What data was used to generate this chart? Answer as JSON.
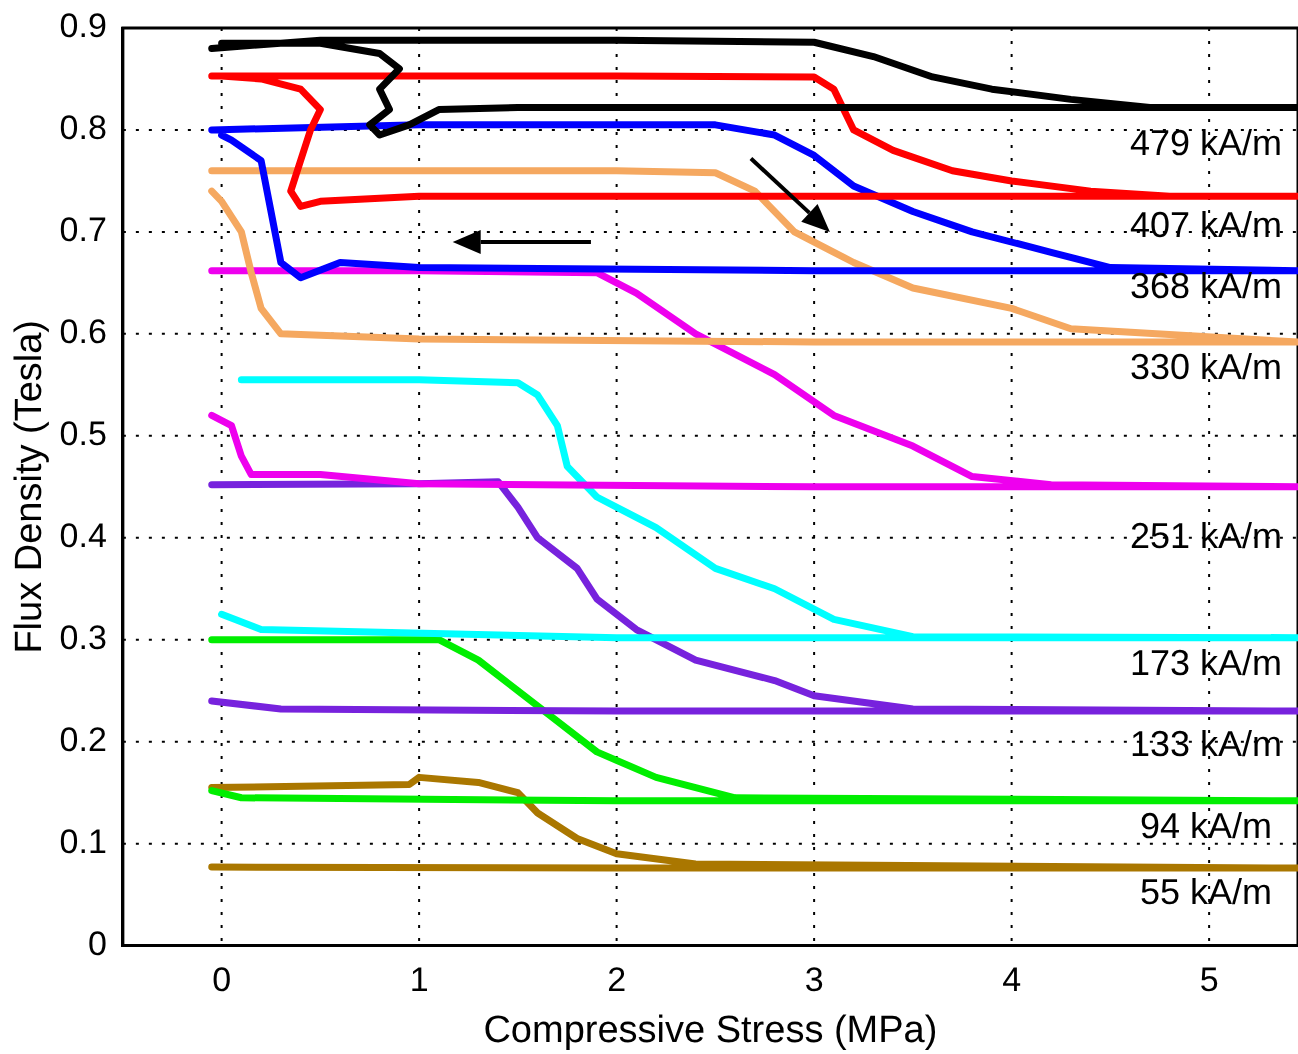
{
  "chart_data": {
    "type": "line",
    "xlabel": "Compressive Stress (MPa)",
    "ylabel": "Flux Density (Tesla)",
    "xlim": [
      -0.5,
      5.45
    ],
    "ylim": [
      0,
      0.9
    ],
    "xticks": [
      0,
      1,
      2,
      3,
      4,
      5
    ],
    "yticks": [
      0,
      0.1,
      0.2,
      0.3,
      0.4,
      0.5,
      0.6,
      0.7,
      0.8,
      0.9
    ],
    "grid": true,
    "legend": false,
    "marker": "none",
    "line_style": "solid",
    "series": [
      {
        "color": "#000000",
        "x": [
          -0.05,
          0.5,
          1,
          2,
          3,
          3.3,
          3.6,
          3.9,
          4.3,
          4.7,
          5.45,
          3,
          1.5,
          1.1,
          0.95,
          0.8,
          0.75,
          0.85,
          0.8,
          0.9,
          0.8,
          0.5,
          0
        ],
        "values": [
          0.88,
          0.888,
          0.888,
          0.888,
          0.886,
          0.872,
          0.852,
          0.84,
          0.83,
          0.822,
          0.822,
          0.822,
          0.822,
          0.82,
          0.805,
          0.795,
          0.805,
          0.82,
          0.84,
          0.86,
          0.875,
          0.885,
          0.885
        ]
      },
      {
        "color": "#ff0000",
        "x": [
          -0.05,
          1,
          2,
          3,
          3.1,
          3.2,
          3.4,
          3.7,
          4,
          4.4,
          4.8,
          5.45,
          3,
          1,
          0.5,
          0.4,
          0.35,
          0.4,
          0.45,
          0.5,
          0.4,
          0.2,
          0
        ],
        "values": [
          0.853,
          0.853,
          0.853,
          0.852,
          0.84,
          0.8,
          0.78,
          0.76,
          0.75,
          0.74,
          0.735,
          0.735,
          0.735,
          0.735,
          0.73,
          0.725,
          0.74,
          0.77,
          0.8,
          0.82,
          0.84,
          0.85,
          0.853
        ]
      },
      {
        "color": "#0000ff",
        "x": [
          -0.05,
          1,
          2,
          2.5,
          2.8,
          3,
          3.2,
          3.5,
          3.8,
          4.2,
          4.5,
          5.45,
          3,
          1,
          0.6,
          0.4,
          0.3,
          0.25,
          0.2,
          0.05,
          0
        ],
        "values": [
          0.8,
          0.805,
          0.805,
          0.805,
          0.795,
          0.775,
          0.745,
          0.72,
          0.7,
          0.68,
          0.665,
          0.662,
          0.662,
          0.665,
          0.67,
          0.655,
          0.67,
          0.72,
          0.77,
          0.79,
          0.795
        ]
      },
      {
        "color": "#f5a860",
        "x": [
          -0.05,
          1,
          2,
          2.5,
          2.7,
          2.9,
          3.2,
          3.5,
          4,
          4.3,
          5.45,
          3,
          1,
          0.3,
          0.2,
          0.15,
          0.1,
          0,
          -0.05
        ],
        "values": [
          0.76,
          0.76,
          0.76,
          0.758,
          0.74,
          0.7,
          0.67,
          0.645,
          0.625,
          0.605,
          0.592,
          0.592,
          0.595,
          0.6,
          0.625,
          0.66,
          0.7,
          0.73,
          0.74
        ]
      },
      {
        "color": "#ee00ee",
        "x": [
          -0.05,
          1,
          1.9,
          2.1,
          2.4,
          2.8,
          3.1,
          3.5,
          3.8,
          4.2,
          5.45,
          3,
          1,
          0.5,
          0.15,
          0.1,
          0.05,
          -0.05
        ],
        "values": [
          0.662,
          0.662,
          0.66,
          0.64,
          0.6,
          0.56,
          0.52,
          0.49,
          0.46,
          0.452,
          0.45,
          0.45,
          0.453,
          0.462,
          0.462,
          0.48,
          0.51,
          0.52
        ]
      },
      {
        "color": "#00ffff",
        "x": [
          0.1,
          1,
          1.5,
          1.6,
          1.7,
          1.75,
          1.9,
          2.2,
          2.5,
          2.8,
          3.1,
          3.5,
          5.45,
          2,
          0.2,
          0
        ],
        "values": [
          0.555,
          0.555,
          0.552,
          0.54,
          0.51,
          0.47,
          0.44,
          0.41,
          0.37,
          0.35,
          0.32,
          0.303,
          0.302,
          0.302,
          0.31,
          0.325
        ]
      },
      {
        "color": "#7722dd",
        "x": [
          -0.05,
          1,
          1.4,
          1.5,
          1.6,
          1.8,
          1.9,
          2.1,
          2.4,
          2.8,
          3,
          3.5,
          5.45,
          2,
          0.3,
          -0.05
        ],
        "values": [
          0.452,
          0.453,
          0.455,
          0.43,
          0.4,
          0.37,
          0.34,
          0.31,
          0.28,
          0.26,
          0.245,
          0.232,
          0.23,
          0.23,
          0.232,
          0.24
        ]
      },
      {
        "color": "#00ee00",
        "x": [
          -0.05,
          1.1,
          1.3,
          1.5,
          1.7,
          1.9,
          2.2,
          2.6,
          5.45,
          2,
          0.1,
          -0.05
        ],
        "values": [
          0.3,
          0.3,
          0.28,
          0.25,
          0.22,
          0.19,
          0.165,
          0.145,
          0.142,
          0.142,
          0.145,
          0.152
        ]
      },
      {
        "color": "#aa7700",
        "x": [
          -0.05,
          0.95,
          1,
          1.3,
          1.5,
          1.6,
          1.8,
          2,
          2.4,
          5.45,
          2,
          -0.05
        ],
        "values": [
          0.155,
          0.158,
          0.165,
          0.16,
          0.15,
          0.13,
          0.105,
          0.09,
          0.08,
          0.076,
          0.076,
          0.077
        ]
      }
    ],
    "annotations": [
      "479 kA/m",
      "407 kA/m",
      "368 kA/m",
      "330 kA/m",
      "251 kA/m",
      "173 kA/m",
      "133 kA/m",
      "94 kA/m",
      "55 kA/m"
    ]
  }
}
